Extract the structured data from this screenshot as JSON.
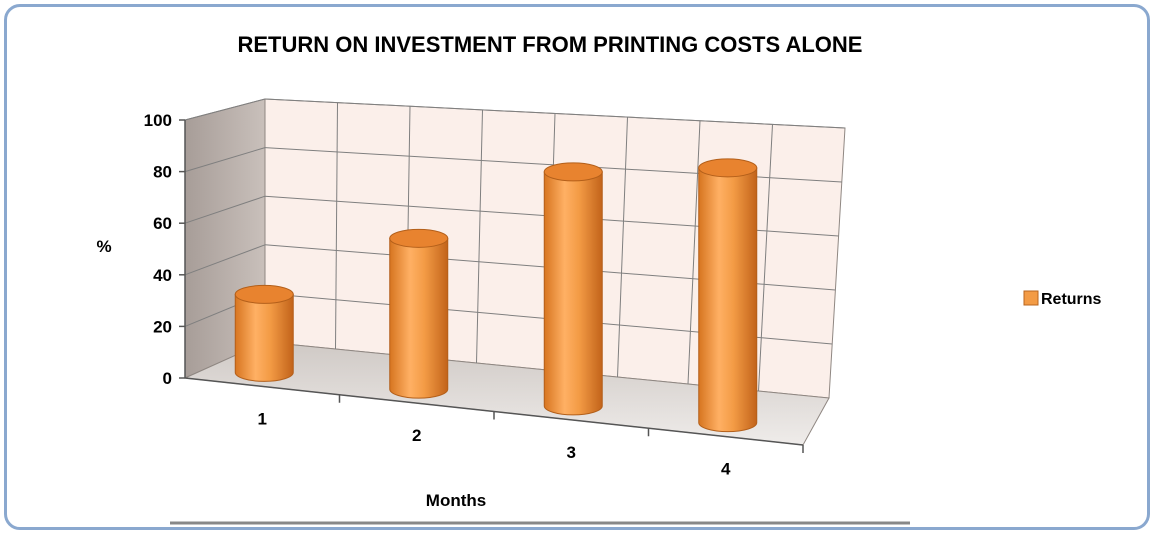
{
  "chart_data": {
    "type": "bar",
    "title": "RETURN ON INVESTMENT FROM PRINTING COSTS ALONE",
    "xlabel": "Months",
    "ylabel": "%",
    "categories": [
      "1",
      "2",
      "3",
      "4"
    ],
    "series": [
      {
        "name": "Returns",
        "values": [
          30,
          58,
          90,
          98
        ]
      }
    ],
    "ylim": [
      0,
      100
    ],
    "yticks": [
      "0",
      "20",
      "40",
      "60",
      "80",
      "100"
    ],
    "grid": true,
    "legend": "right",
    "style": "3d-cylinder",
    "colors": {
      "bar": "#f39b45",
      "bar_dark": "#c96a17",
      "wall": "#fbefea",
      "side_wall": "#b7aca7",
      "floor": "#e6e2de"
    }
  }
}
